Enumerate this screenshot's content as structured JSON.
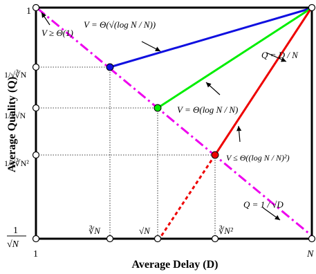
{
  "axes": {
    "x_label": "Average Delay (D)",
    "y_label": "Average Quality (Q)",
    "x_ticks": {
      "origin": "1",
      "cbrt_n": "∛N",
      "sqrt_n": "√N",
      "cbrt_n2": "∛N²",
      "end": "N"
    },
    "y_ticks": {
      "top": "1",
      "inv_cbrt_n": "1/√∛N",
      "inv_sqrt_n": "1/√√N",
      "inv_cbrt_n2": "1/√∛N²",
      "bottom_num": "1",
      "bottom_den": "√N"
    }
  },
  "annotations": {
    "v_lower_bound": "V ≥ Θ(1)",
    "blue_curve": "V = Θ(√(log N / N))",
    "green_curve": "V = Θ(log N / N)",
    "red_curve": "V ≤ Θ((log N / N)²)",
    "red_line": "Q = D / N",
    "magenta_line": "Q = 1 / √D"
  },
  "colors": {
    "blue": "#1010e0",
    "green": "#00ee00",
    "red": "#ee0000",
    "magenta": "#ee00ee",
    "axis": "#000000"
  }
}
